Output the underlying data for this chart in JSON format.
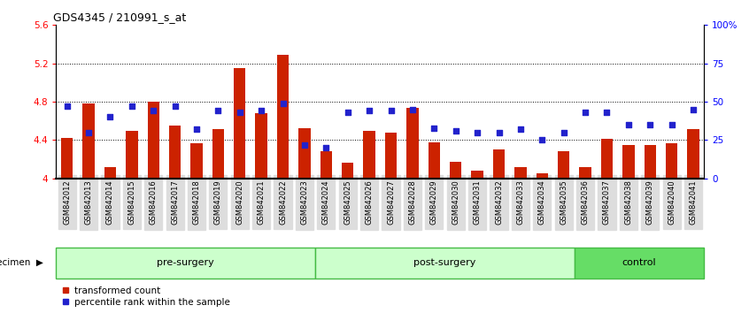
{
  "title": "GDS4345 / 210991_s_at",
  "samples": [
    "GSM842012",
    "GSM842013",
    "GSM842014",
    "GSM842015",
    "GSM842016",
    "GSM842017",
    "GSM842018",
    "GSM842019",
    "GSM842020",
    "GSM842021",
    "GSM842022",
    "GSM842023",
    "GSM842024",
    "GSM842025",
    "GSM842026",
    "GSM842027",
    "GSM842028",
    "GSM842029",
    "GSM842030",
    "GSM842031",
    "GSM842032",
    "GSM842033",
    "GSM842034",
    "GSM842035",
    "GSM842036",
    "GSM842037",
    "GSM842038",
    "GSM842039",
    "GSM842040",
    "GSM842041"
  ],
  "transformed_count": [
    4.42,
    4.78,
    4.12,
    4.5,
    4.8,
    4.55,
    4.37,
    4.51,
    5.15,
    4.68,
    5.29,
    4.52,
    4.28,
    4.16,
    4.5,
    4.48,
    4.74,
    4.38,
    4.17,
    4.08,
    4.3,
    4.12,
    4.05,
    4.28,
    4.12,
    4.41,
    4.35,
    4.35,
    4.37,
    4.51
  ],
  "percentile_rank": [
    47,
    30,
    40,
    47,
    44,
    47,
    32,
    44,
    43,
    44,
    49,
    22,
    20,
    43,
    44,
    44,
    45,
    33,
    31,
    30,
    30,
    32,
    25,
    30,
    43,
    43,
    35,
    35,
    35,
    45
  ],
  "ylim_left": [
    4.0,
    5.6
  ],
  "ylim_right": [
    0,
    100
  ],
  "yticks_left": [
    4.0,
    4.4,
    4.8,
    5.2,
    5.6
  ],
  "yticks_right": [
    0,
    25,
    50,
    75,
    100
  ],
  "ytick_labels_left": [
    "4",
    "4.4",
    "4.8",
    "5.2",
    "5.6"
  ],
  "ytick_labels_right": [
    "0",
    "25",
    "50",
    "75",
    "100%"
  ],
  "bar_color": "#cc2200",
  "dot_color": "#2222cc",
  "group_configs": [
    {
      "start": 0,
      "end": 11,
      "label": "pre-surgery",
      "facecolor": "#ccffcc",
      "edgecolor": "#44bb44"
    },
    {
      "start": 12,
      "end": 23,
      "label": "post-surgery",
      "facecolor": "#ccffcc",
      "edgecolor": "#44bb44"
    },
    {
      "start": 24,
      "end": 29,
      "label": "control",
      "facecolor": "#66dd66",
      "edgecolor": "#44bb44"
    }
  ]
}
